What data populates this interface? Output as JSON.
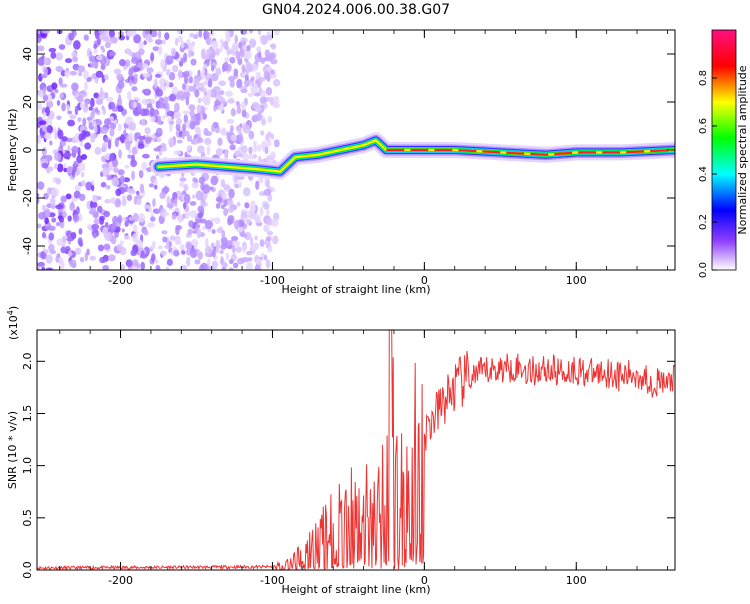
{
  "title": "GN04.2024.006.00.38.G07",
  "chart_data": [
    {
      "type": "heatmap",
      "xlabel": "Height of straight line (km)",
      "ylabel": "Frequency (Hz)",
      "xlim": [
        -255,
        165
      ],
      "ylim": [
        -50,
        50
      ],
      "xticks": [
        -200,
        -100,
        0,
        100
      ],
      "yticks": [
        -40,
        -20,
        0,
        20,
        40
      ],
      "colorbar": {
        "label": "Normalized spectral amplitude",
        "range": [
          0,
          1
        ],
        "ticks": [
          "0.0",
          "0.2",
          "0.4",
          "0.6",
          "0.8"
        ],
        "colormap": [
          "#ffffff",
          "#7000ff",
          "#0000ff",
          "#00ffff",
          "#00ff00",
          "#ffff00",
          "#ff0000",
          "#ff0080"
        ]
      },
      "noise_region_x": [
        -255,
        -97
      ],
      "ridge": [
        {
          "x": -175,
          "y": -7
        },
        {
          "x": -150,
          "y": -6
        },
        {
          "x": -130,
          "y": -7
        },
        {
          "x": -110,
          "y": -8
        },
        {
          "x": -95,
          "y": -9
        },
        {
          "x": -85,
          "y": -3
        },
        {
          "x": -70,
          "y": -2
        },
        {
          "x": -55,
          "y": 0
        },
        {
          "x": -40,
          "y": 2
        },
        {
          "x": -32,
          "y": 4
        },
        {
          "x": -25,
          "y": 0
        },
        {
          "x": -10,
          "y": 0
        },
        {
          "x": 20,
          "y": 0
        },
        {
          "x": 50,
          "y": -1
        },
        {
          "x": 80,
          "y": -2
        },
        {
          "x": 100,
          "y": -1
        },
        {
          "x": 130,
          "y": -1
        },
        {
          "x": 165,
          "y": 0
        }
      ]
    },
    {
      "type": "line",
      "xlabel": "Height of straight line (km)",
      "ylabel": "SNR (10 * v/v)",
      "y_exponent_label": "(x10",
      "y_exponent_power": "4",
      "y_exponent_close": ")",
      "xlim": [
        -255,
        165
      ],
      "ylim": [
        0,
        23000
      ],
      "xticks": [
        -200,
        -100,
        0,
        100
      ],
      "yticks": [
        "0.0",
        "0.5",
        "1.0",
        "1.5",
        "2.0"
      ],
      "ytick_values": [
        0,
        5000,
        10000,
        15000,
        20000
      ],
      "color": "#ee3333",
      "series": [
        {
          "x": [
            -255,
            -100,
            -90,
            -80,
            -70,
            -60,
            -50,
            -40,
            -30,
            -25,
            -22,
            -20,
            -15,
            -10,
            -5,
            0,
            10,
            20,
            30,
            40,
            50,
            60,
            70,
            80,
            90,
            100,
            110,
            120,
            130,
            140,
            150,
            160,
            165
          ],
          "values": [
            200,
            300,
            700,
            1500,
            2800,
            4200,
            5200,
            5500,
            6000,
            7000,
            23000,
            9000,
            8000,
            10000,
            12000,
            13000,
            15500,
            17500,
            18500,
            19000,
            19300,
            19500,
            19000,
            19300,
            19000,
            19200,
            18800,
            19000,
            18500,
            18800,
            18000,
            17800,
            18500
          ]
        }
      ]
    }
  ]
}
